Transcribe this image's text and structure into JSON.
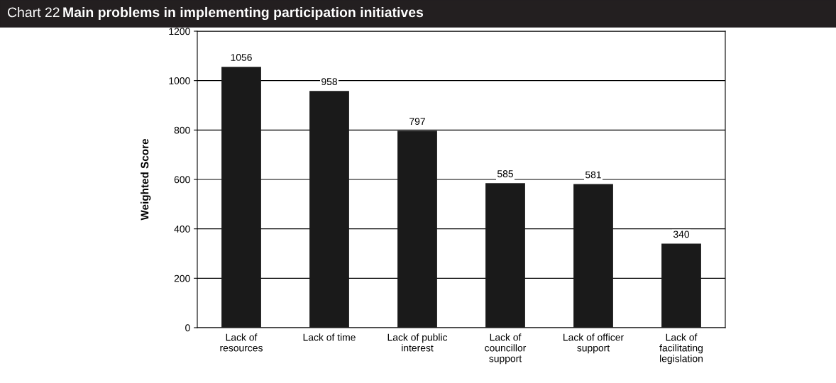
{
  "chart_data": {
    "type": "bar",
    "title": "Chart 22",
    "subtitle": "Main problems in implementing participation initiatives",
    "ylabel": "Weighted Score",
    "categories": [
      "Lack of\nresources",
      "Lack of time",
      "Lack of public\ninterest",
      "Lack of\ncouncillor\nsupport",
      "Lack of officer\nsupport",
      "Lack of\nfacilitating\nlegislation"
    ],
    "values": [
      1056,
      958,
      797,
      585,
      581,
      340
    ],
    "color": "#1a1a1a",
    "ylim": [
      0,
      1200
    ],
    "yticks": [
      0,
      200,
      400,
      600,
      800,
      1000,
      1200
    ],
    "grid": "y",
    "data_labels": true
  }
}
